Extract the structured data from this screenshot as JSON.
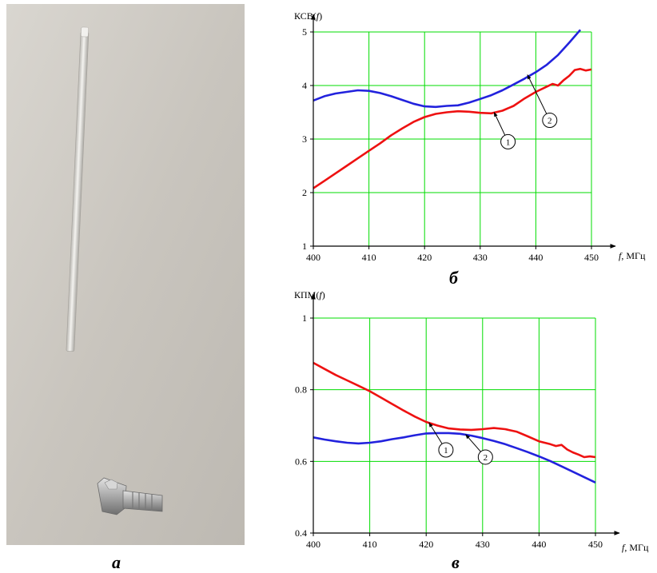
{
  "photo": {
    "label": "а",
    "subject": "whip-antenna-with-coaxial-connector"
  },
  "chart_data": [
    {
      "type": "line",
      "panel_label": "б",
      "title": "",
      "ylabel_prefix": "КСВ(",
      "ylabel_var": "f",
      "ylabel_suffix": ")",
      "xlabel_var": "f",
      "xlabel_unit": ", МГц",
      "xlim": [
        400,
        450
      ],
      "ylim": [
        1,
        5
      ],
      "xticks": [
        "400",
        "410",
        "420",
        "430",
        "440",
        "450"
      ],
      "yticks": [
        "1",
        "2",
        "3",
        "4",
        "5"
      ],
      "grid": true,
      "grid_color": "#00dd00",
      "series": [
        {
          "callout": "1",
          "color": "#ee1111",
          "x": [
            400,
            402,
            404,
            406,
            408,
            410,
            412,
            414,
            416,
            418,
            420,
            422,
            424,
            426,
            428,
            430,
            432,
            434,
            436,
            438,
            440,
            442,
            443,
            444,
            445,
            446,
            447,
            448,
            449,
            450
          ],
          "y": [
            2.08,
            2.22,
            2.36,
            2.5,
            2.64,
            2.78,
            2.92,
            3.07,
            3.2,
            3.32,
            3.41,
            3.47,
            3.5,
            3.52,
            3.51,
            3.49,
            3.48,
            3.53,
            3.62,
            3.76,
            3.88,
            3.98,
            4.03,
            4.0,
            4.1,
            4.18,
            4.29,
            4.31,
            4.28,
            4.3
          ]
        },
        {
          "callout": "2",
          "color": "#2222dd",
          "x": [
            400,
            402,
            404,
            406,
            408,
            410,
            412,
            414,
            416,
            418,
            420,
            422,
            424,
            426,
            428,
            430,
            432,
            434,
            436,
            438,
            440,
            442,
            444,
            446,
            448
          ],
          "y": [
            3.72,
            3.8,
            3.85,
            3.88,
            3.91,
            3.9,
            3.86,
            3.8,
            3.73,
            3.66,
            3.61,
            3.6,
            3.62,
            3.63,
            3.68,
            3.75,
            3.82,
            3.91,
            4.02,
            4.13,
            4.25,
            4.39,
            4.57,
            4.8,
            5.04
          ]
        }
      ],
      "callouts": [
        {
          "text": "1",
          "series": 0,
          "point_x": 432.5,
          "point_y": 3.5,
          "label_x": 435.0,
          "label_y": 2.95
        },
        {
          "text": "2",
          "series": 1,
          "point_x": 438.5,
          "point_y": 4.2,
          "label_x": 442.5,
          "label_y": 3.35
        }
      ]
    },
    {
      "type": "line",
      "panel_label": "в",
      "title": "",
      "ylabel_prefix": "КПМ(",
      "ylabel_var": "f",
      "ylabel_suffix": ")",
      "xlabel_var": "f",
      "xlabel_unit": ", МГц",
      "xlim": [
        400,
        450
      ],
      "ylim": [
        0.4,
        1
      ],
      "xticks": [
        "400",
        "410",
        "420",
        "430",
        "440",
        "450"
      ],
      "yticks": [
        "0.4",
        "0.6",
        "0.8",
        "1"
      ],
      "grid": true,
      "grid_color": "#00dd00",
      "series": [
        {
          "callout": "1",
          "color": "#ee1111",
          "x": [
            400,
            402,
            404,
            406,
            408,
            410,
            412,
            414,
            416,
            418,
            420,
            422,
            424,
            426,
            428,
            430,
            432,
            434,
            436,
            438,
            440,
            442,
            443,
            444,
            445,
            446,
            447,
            448,
            449,
            450
          ],
          "y": [
            0.875,
            0.858,
            0.841,
            0.826,
            0.811,
            0.796,
            0.778,
            0.76,
            0.742,
            0.725,
            0.71,
            0.7,
            0.692,
            0.689,
            0.688,
            0.69,
            0.693,
            0.69,
            0.683,
            0.67,
            0.656,
            0.648,
            0.643,
            0.646,
            0.633,
            0.625,
            0.619,
            0.612,
            0.614,
            0.612
          ]
        },
        {
          "callout": "2",
          "color": "#2222dd",
          "x": [
            400,
            402,
            404,
            406,
            408,
            410,
            412,
            414,
            416,
            418,
            420,
            422,
            424,
            426,
            428,
            430,
            432,
            434,
            436,
            438,
            440,
            442,
            444,
            446,
            448,
            450
          ],
          "y": [
            0.667,
            0.661,
            0.656,
            0.652,
            0.65,
            0.652,
            0.656,
            0.662,
            0.667,
            0.673,
            0.678,
            0.679,
            0.679,
            0.677,
            0.672,
            0.665,
            0.657,
            0.648,
            0.637,
            0.626,
            0.614,
            0.601,
            0.586,
            0.571,
            0.556,
            0.541
          ]
        }
      ],
      "callouts": [
        {
          "text": "1",
          "series": 0,
          "point_x": 420.5,
          "point_y": 0.708,
          "label_x": 423.5,
          "label_y": 0.632
        },
        {
          "text": "2",
          "series": 1,
          "point_x": 427.0,
          "point_y": 0.675,
          "label_x": 430.5,
          "label_y": 0.612
        }
      ]
    }
  ]
}
